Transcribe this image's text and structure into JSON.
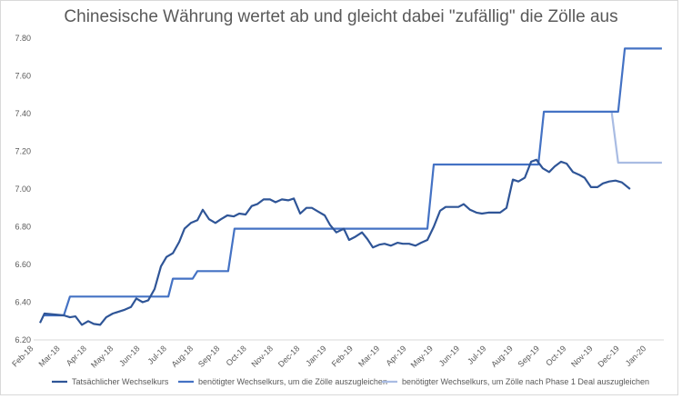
{
  "chart_data": {
    "type": "line",
    "title": "Chinesische Währung wertet ab und gleicht dabei \"zufällig\" die Zölle aus",
    "xlabel": "",
    "ylabel": "",
    "x_unit": "months since Feb-18",
    "ylim": [
      6.2,
      7.8
    ],
    "yticks": [
      "6.20",
      "6.40",
      "6.60",
      "6.80",
      "7.00",
      "7.20",
      "7.40",
      "7.60",
      "7.80"
    ],
    "xticks": [
      "Feb-18",
      "Mar-18",
      "Apr-18",
      "May-18",
      "Jun-18",
      "Jul-18",
      "Aug-18",
      "Sep-18",
      "Oct-18",
      "Nov-18",
      "Dec-18",
      "Jan-19",
      "Feb-19",
      "Mar-19",
      "Apr-19",
      "May-19",
      "Jun-19",
      "Jul-19",
      "Aug-19",
      "Sep-19",
      "Oct-19",
      "Nov-19",
      "Dec-19",
      "Jan-20"
    ],
    "grid": false,
    "legend_position": "bottom",
    "series": [
      {
        "name": "Tatsächlicher Wechselkurs",
        "color": "#2F5597",
        "points": [
          [
            0,
            6.29
          ],
          [
            0.17,
            6.34
          ],
          [
            0.9,
            6.33
          ],
          [
            1.13,
            6.32
          ],
          [
            1.34,
            6.325
          ],
          [
            1.58,
            6.28
          ],
          [
            1.82,
            6.3
          ],
          [
            2.03,
            6.285
          ],
          [
            2.27,
            6.28
          ],
          [
            2.5,
            6.32
          ],
          [
            2.75,
            6.34
          ],
          [
            3.2,
            6.36
          ],
          [
            3.44,
            6.375
          ],
          [
            3.64,
            6.42
          ],
          [
            3.88,
            6.4
          ],
          [
            4.09,
            6.41
          ],
          [
            4.33,
            6.47
          ],
          [
            4.57,
            6.59
          ],
          [
            4.78,
            6.64
          ],
          [
            5.02,
            6.66
          ],
          [
            5.26,
            6.72
          ],
          [
            5.46,
            6.79
          ],
          [
            5.7,
            6.82
          ],
          [
            5.95,
            6.835
          ],
          [
            6.15,
            6.89
          ],
          [
            6.39,
            6.84
          ],
          [
            6.63,
            6.82
          ],
          [
            6.84,
            6.84
          ],
          [
            7.08,
            6.86
          ],
          [
            7.32,
            6.855
          ],
          [
            7.53,
            6.87
          ],
          [
            7.77,
            6.865
          ],
          [
            8.0,
            6.91
          ],
          [
            8.21,
            6.92
          ],
          [
            8.45,
            6.945
          ],
          [
            8.69,
            6.945
          ],
          [
            8.9,
            6.93
          ],
          [
            9.14,
            6.945
          ],
          [
            9.38,
            6.94
          ],
          [
            9.59,
            6.95
          ],
          [
            9.83,
            6.87
          ],
          [
            10.07,
            6.9
          ],
          [
            10.27,
            6.9
          ],
          [
            10.52,
            6.88
          ],
          [
            10.76,
            6.86
          ],
          [
            10.96,
            6.81
          ],
          [
            11.2,
            6.77
          ],
          [
            11.48,
            6.79
          ],
          [
            11.68,
            6.73
          ],
          [
            11.89,
            6.745
          ],
          [
            12.17,
            6.77
          ],
          [
            12.37,
            6.735
          ],
          [
            12.58,
            6.69
          ],
          [
            12.82,
            6.705
          ],
          [
            13.02,
            6.71
          ],
          [
            13.26,
            6.7
          ],
          [
            13.51,
            6.715
          ],
          [
            13.71,
            6.71
          ],
          [
            13.95,
            6.71
          ],
          [
            14.19,
            6.7
          ],
          [
            14.4,
            6.715
          ],
          [
            14.64,
            6.73
          ],
          [
            14.88,
            6.8
          ],
          [
            15.12,
            6.885
          ],
          [
            15.33,
            6.905
          ],
          [
            15.57,
            6.905
          ],
          [
            15.81,
            6.905
          ],
          [
            16.01,
            6.92
          ],
          [
            16.25,
            6.89
          ],
          [
            16.49,
            6.875
          ],
          [
            16.7,
            6.87
          ],
          [
            16.94,
            6.875
          ],
          [
            17.18,
            6.875
          ],
          [
            17.39,
            6.875
          ],
          [
            17.63,
            6.9
          ],
          [
            17.87,
            7.05
          ],
          [
            18.08,
            7.04
          ],
          [
            18.32,
            7.06
          ],
          [
            18.56,
            7.145
          ],
          [
            18.76,
            7.155
          ],
          [
            19.0,
            7.11
          ],
          [
            19.24,
            7.09
          ],
          [
            19.45,
            7.12
          ],
          [
            19.69,
            7.145
          ],
          [
            19.9,
            7.135
          ],
          [
            20.14,
            7.09
          ],
          [
            20.38,
            7.075
          ],
          [
            20.58,
            7.06
          ],
          [
            20.82,
            7.01
          ],
          [
            21.07,
            7.01
          ],
          [
            21.27,
            7.03
          ],
          [
            21.51,
            7.04
          ],
          [
            21.75,
            7.045
          ],
          [
            21.99,
            7.035
          ],
          [
            22.3,
            7.0
          ]
        ]
      },
      {
        "name": "benötigter Wechselkurs, um die Zölle auszugleichen",
        "color": "#4472C4",
        "points": [
          [
            0.17,
            6.33
          ],
          [
            0.9,
            6.33
          ],
          [
            1.13,
            6.43
          ],
          [
            4.85,
            6.43
          ],
          [
            5.02,
            6.525
          ],
          [
            5.77,
            6.525
          ],
          [
            5.95,
            6.565
          ],
          [
            7.11,
            6.565
          ],
          [
            7.35,
            6.79
          ],
          [
            14.64,
            6.79
          ],
          [
            14.88,
            7.13
          ],
          [
            18.83,
            7.13
          ],
          [
            19.04,
            7.41
          ],
          [
            21.85,
            7.41
          ],
          [
            22.1,
            7.745
          ],
          [
            23.5,
            7.745
          ]
        ]
      },
      {
        "name": "benötigter Wechselkurs, um Zölle nach Phase 1 Deal auszugleichen",
        "color": "#A9BCE3",
        "points": [
          [
            21.6,
            7.41
          ],
          [
            21.85,
            7.14
          ],
          [
            23.5,
            7.14
          ]
        ]
      }
    ]
  }
}
